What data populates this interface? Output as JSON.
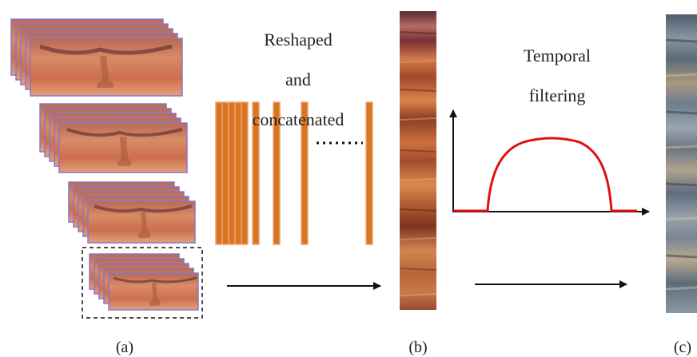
{
  "captions": {
    "a": "(a)",
    "b": "(b)",
    "c": "(c)"
  },
  "step1": {
    "line1": "Reshaped",
    "line2": "and",
    "line3": "concatenated"
  },
  "step2": {
    "line1": "Temporal",
    "line2": "filtering"
  },
  "colors": {
    "frame_border": "#8a76c8",
    "skin": "#d27a57",
    "strip_fill": "#d8761e",
    "strip_border": "#f0a07a",
    "filter_curve": "#e01010",
    "arrow": "#111111"
  },
  "icons": {
    "ellipsis": "dotted-line-icon",
    "arrow": "right-arrow-icon"
  }
}
